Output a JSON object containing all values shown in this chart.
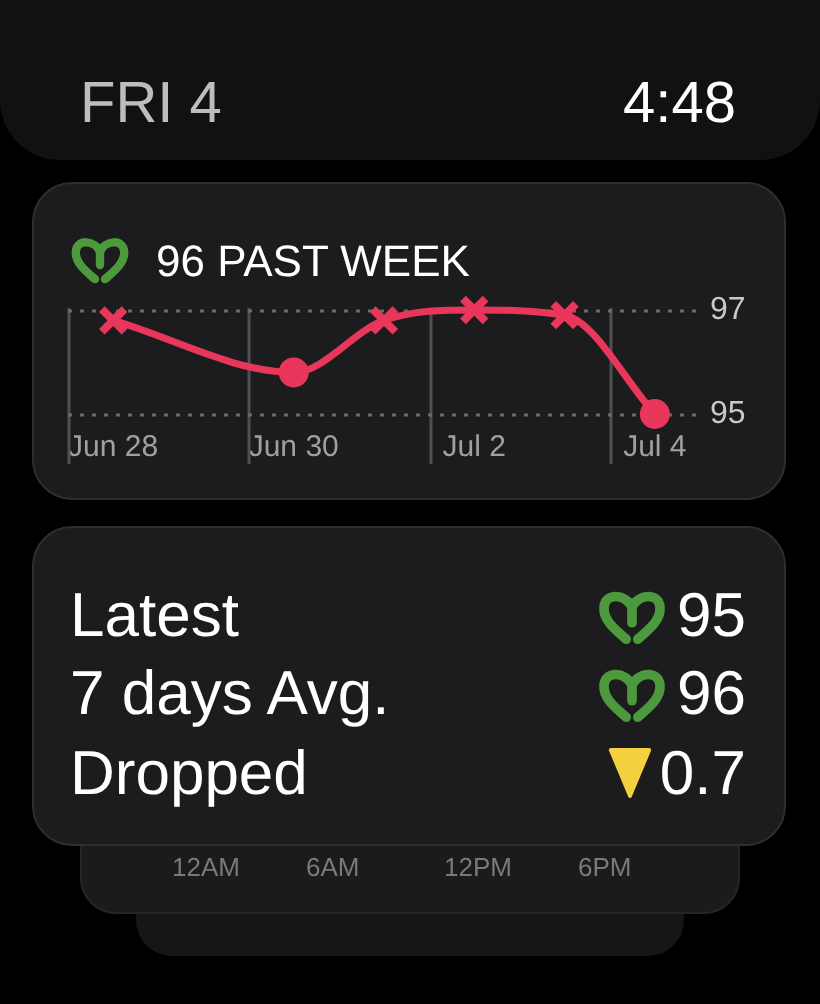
{
  "chart_data": {
    "type": "line",
    "title": "96 PAST WEEK",
    "categories": [
      "Jun 28",
      null,
      "Jun 30",
      null,
      "Jul 2",
      null,
      "Jul 4"
    ],
    "series": [
      {
        "color": "#e8375a",
        "values": [
          96.8,
          null,
          95.8,
          96.8,
          97.0,
          96.9,
          95.0
        ],
        "marker": "none",
        "line_style": "solid"
      },
      {
        "type": "scatter",
        "color": "#e8375a",
        "values": [
          96.8,
          null,
          null,
          96.8,
          97.0,
          96.9,
          null
        ],
        "marker": "cross"
      },
      {
        "type": "scatter",
        "color": "#e8375a",
        "values": [
          null,
          null,
          95.8,
          null,
          null,
          null,
          95.0
        ],
        "marker": "circle"
      }
    ],
    "ylim": [
      95,
      97
    ],
    "yticks": [
      95,
      97
    ],
    "grid": true,
    "annotations": [
      "FRI 4",
      "4:48",
      "Latest",
      "95",
      "7 days Avg.",
      "96",
      "Dropped",
      "0.7",
      "12AM",
      "6AM",
      "12PM",
      "6PM"
    ]
  }
}
